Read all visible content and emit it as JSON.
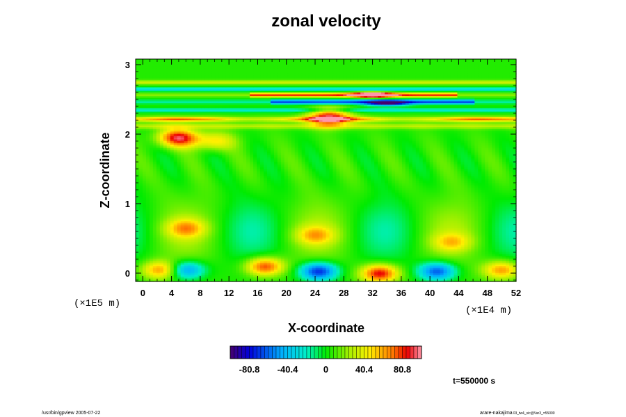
{
  "chart_data": {
    "type": "heatmap",
    "title": "zonal velocity",
    "xlabel": "X-coordinate",
    "ylabel": "Z-coordinate",
    "x_unit": "(×1E4 m)",
    "y_unit": "(×1E5 m)",
    "xlim": [
      -1,
      52
    ],
    "ylim": [
      -0.12,
      3.08
    ],
    "x_ticks": [
      "0",
      "4",
      "8",
      "12",
      "16",
      "20",
      "24",
      "28",
      "32",
      "36",
      "40",
      "44",
      "48",
      "52"
    ],
    "y_ticks": [
      "0",
      "1",
      "2",
      "3"
    ],
    "colorbar": {
      "min": -101,
      "max": 101,
      "tick_labels": [
        "-80.8",
        "-40.4",
        "0",
        "40.4",
        "80.8"
      ],
      "tick_values": [
        -80.8,
        -40.4,
        0,
        40.4,
        80.8
      ],
      "colormap": "rainbow (purple-blue-cyan-green-yellow-red-pink)"
    },
    "time_label": "t=550000 s",
    "features": [
      {
        "x": 2.5,
        "z": 0.05,
        "value": 60
      },
      {
        "x": 6,
        "z": 0.05,
        "value": -60
      },
      {
        "x": 17,
        "z": 0.1,
        "value": 75
      },
      {
        "x": 24.5,
        "z": 0.03,
        "value": -80
      },
      {
        "x": 33,
        "z": 0.0,
        "value": 85
      },
      {
        "x": 41,
        "z": 0.03,
        "value": -70
      },
      {
        "x": 50,
        "z": 0.05,
        "value": 60
      },
      {
        "x": 6,
        "z": 0.65,
        "value": 45
      },
      {
        "x": 24,
        "z": 0.55,
        "value": 40
      },
      {
        "x": 43,
        "z": 0.45,
        "value": 35
      },
      {
        "x": 5,
        "z": 1.95,
        "value": 85
      },
      {
        "x": 10,
        "z": 1.9,
        "value": 40
      },
      {
        "x": 32,
        "z": 2.57,
        "value": 90
      },
      {
        "x": 34,
        "z": 2.45,
        "value": -75
      },
      {
        "x": 26,
        "z": 2.25,
        "value": 80
      }
    ]
  },
  "footer": {
    "left": "/usr/bin/gpview 2005-07-22",
    "right": "arare-nakajima",
    "right_sub": "03_tw4_sic@Var3_=55000"
  }
}
